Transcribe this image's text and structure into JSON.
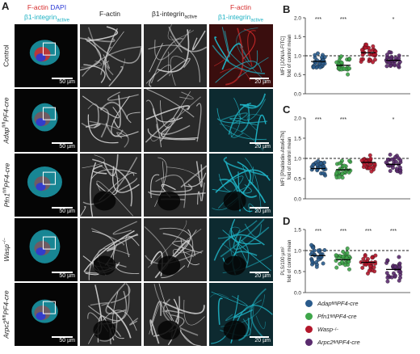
{
  "panel_a": {
    "letter": "A",
    "header_merge": {
      "red": "F-actin",
      "blue": "DAPI",
      "cyan_base": "β1-integrin",
      "cyan_sub": "active"
    },
    "header_factin": "F-actin",
    "header_integrin_base": "β1-integrin",
    "header_integrin_sub": "active",
    "header_overlay_red": "F-actin",
    "header_overlay_cyan_base": "β1-integrin",
    "header_overlay_cyan_sub": "active",
    "scale_overview": "50 µm",
    "scale_zoom": "20 µm",
    "rows": [
      {
        "label_plain": "Control",
        "label_gene": "",
        "label_sup": "",
        "label_suffix": ""
      },
      {
        "label_plain": "",
        "label_gene": "Adap",
        "label_sup": "fl/fl",
        "label_suffix": "PF4-cre"
      },
      {
        "label_plain": "",
        "label_gene": "Pfn1",
        "label_sup": "fl/fl",
        "label_suffix": "PF4-cre"
      },
      {
        "label_plain": "",
        "label_gene": "Wasp",
        "label_sup": "−/−",
        "label_suffix": ""
      },
      {
        "label_plain": "",
        "label_gene": "Arpc2",
        "label_sup": "fl/fl",
        "label_suffix": "PF4-cre"
      }
    ]
  },
  "colors": {
    "adap": "#2a5b8c",
    "pfn1": "#3fa64a",
    "wasp": "#b3172b",
    "arpc2": "#5a2b6e",
    "red": "#d62a2a",
    "blue": "#2b3ad6",
    "cyan": "#1fb2c4"
  },
  "legend": [
    {
      "gene": "Adap",
      "sup": "fl/fl",
      "suffix": "PF4-cre",
      "color": "#2a5b8c"
    },
    {
      "gene": "Pfn1",
      "sup": "fl/fl",
      "suffix": "PF4-cre",
      "color": "#3fa64a"
    },
    {
      "gene": "Wasp",
      "sup": "−/−",
      "suffix": "",
      "color": "#b3172b"
    },
    {
      "gene": "Arpc2",
      "sup": "fl/fl",
      "suffix": "PF4-cre",
      "color": "#5a2b6e"
    }
  ],
  "chart_data": [
    {
      "type": "scatter",
      "letter": "B",
      "ylabel_1": "MFI [JON/A-FITC]",
      "ylabel_2": "fold of control mean",
      "ylim": [
        0,
        2.0
      ],
      "yticks": [
        "0.0",
        "0.5",
        "1.0",
        "1.5",
        "2.0"
      ],
      "reference_line": 1.0,
      "significance": [
        "***",
        "***",
        "",
        "*"
      ],
      "series": [
        {
          "means": 0.85
        },
        {
          "means": 0.75
        },
        {
          "means": 1.08
        },
        {
          "means": 0.88
        }
      ]
    },
    {
      "type": "scatter",
      "letter": "C",
      "ylabel_1": "MFI [Phalloidin-Atto647N]",
      "ylabel_2": "fold of control mean",
      "ylim": [
        0,
        2.0
      ],
      "yticks": [
        "0.0",
        "0.5",
        "1.0",
        "1.5",
        "2.0"
      ],
      "reference_line": 1.0,
      "significance": [
        "***",
        "***",
        "",
        "*"
      ],
      "series": [
        {
          "means": 0.75
        },
        {
          "means": 0.72
        },
        {
          "means": 0.9
        },
        {
          "means": 0.85
        }
      ]
    },
    {
      "type": "scatter",
      "letter": "D",
      "ylabel_1": "PLS/100 µm²",
      "ylabel_2": "fold of control mean",
      "ylim": [
        0,
        1.5
      ],
      "yticks": [
        "0.0",
        "0.5",
        "1.0",
        "1.5"
      ],
      "reference_line": 1.0,
      "significance": [
        "***",
        "***",
        "***",
        "***"
      ],
      "series": [
        {
          "means": 0.88
        },
        {
          "means": 0.78
        },
        {
          "means": 0.72
        },
        {
          "means": 0.55
        }
      ]
    }
  ]
}
